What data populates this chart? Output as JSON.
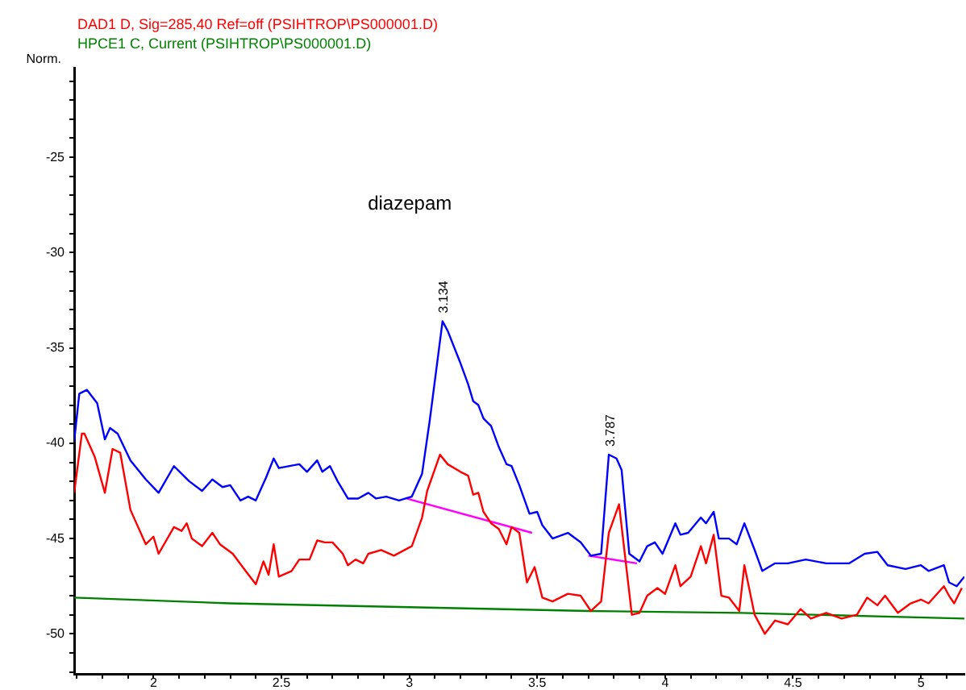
{
  "chart_data": {
    "type": "line",
    "ylabel": "Norm.",
    "annotations": [
      "diazepam",
      {
        "text": "3.134",
        "x": 3.134,
        "y": -33.6
      },
      {
        "text": "3.787",
        "x": 3.787,
        "y": -40.6
      }
    ],
    "xlim": [
      1.69,
      5.17
    ],
    "ylim": [
      -52.1,
      -20.3
    ],
    "xticks": [
      {
        "value": 1.7,
        "label": null
      },
      {
        "value": 1.8,
        "label": null
      },
      {
        "value": 1.9,
        "label": null
      },
      2,
      {
        "value": 2.1,
        "label": null
      },
      {
        "value": 2.2,
        "label": null
      },
      {
        "value": 2.3,
        "label": null
      },
      {
        "value": 2.4,
        "label": null
      },
      2.5,
      {
        "value": 2.6,
        "label": null
      },
      {
        "value": 2.7,
        "label": null
      },
      {
        "value": 2.8,
        "label": null
      },
      {
        "value": 2.9,
        "label": null
      },
      3,
      {
        "value": 3.1,
        "label": null
      },
      {
        "value": 3.2,
        "label": null
      },
      {
        "value": 3.3,
        "label": null
      },
      {
        "value": 3.4,
        "label": null
      },
      3.5,
      {
        "value": 3.6,
        "label": null
      },
      {
        "value": 3.7,
        "label": null
      },
      {
        "value": 3.8,
        "label": null
      },
      {
        "value": 3.9,
        "label": null
      },
      4,
      {
        "value": 4.1,
        "label": null
      },
      {
        "value": 4.2,
        "label": null
      },
      {
        "value": 4.3,
        "label": null
      },
      {
        "value": 4.4,
        "label": null
      },
      4.5,
      {
        "value": 4.6,
        "label": null
      },
      {
        "value": 4.7,
        "label": null
      },
      {
        "value": 4.8,
        "label": null
      },
      {
        "value": 4.9,
        "label": null
      },
      5,
      {
        "value": 5.1,
        "label": null
      }
    ],
    "yticks": [
      {
        "value": -52,
        "label": null
      },
      {
        "value": -51,
        "label": null
      },
      -50,
      {
        "value": -49,
        "label": null
      },
      {
        "value": -48,
        "label": null
      },
      {
        "value": -47,
        "label": null
      },
      {
        "value": -46,
        "label": null
      },
      -45,
      {
        "value": -44,
        "label": null
      },
      {
        "value": -43,
        "label": null
      },
      {
        "value": -42,
        "label": null
      },
      {
        "value": -41,
        "label": null
      },
      -40,
      {
        "value": -39,
        "label": null
      },
      {
        "value": -38,
        "label": null
      },
      {
        "value": -37,
        "label": null
      },
      {
        "value": -36,
        "label": null
      },
      -35,
      {
        "value": -34,
        "label": null
      },
      {
        "value": -33,
        "label": null
      },
      {
        "value": -32,
        "label": null
      },
      {
        "value": -31,
        "label": null
      },
      -30,
      {
        "value": -29,
        "label": null
      },
      {
        "value": -28,
        "label": null
      },
      {
        "value": -27,
        "label": null
      },
      {
        "value": -26,
        "label": null
      },
      -25,
      {
        "value": -24,
        "label": null
      },
      {
        "value": -23,
        "label": null
      },
      {
        "value": -22,
        "label": null
      },
      {
        "value": -21,
        "label": null
      }
    ],
    "grid": false,
    "marker": "none",
    "line_style": "solid",
    "series": [
      {
        "color": "#0000ff",
        "x": [
          1.69,
          1.71,
          1.74,
          1.78,
          1.81,
          1.83,
          1.86,
          1.91,
          1.97,
          2.02,
          2.08,
          2.14,
          2.19,
          2.23,
          2.27,
          2.3,
          2.34,
          2.37,
          2.4,
          2.44,
          2.47,
          2.49,
          2.57,
          2.6,
          2.64,
          2.66,
          2.69,
          2.72,
          2.76,
          2.8,
          2.84,
          2.87,
          2.91,
          2.96,
          3.01,
          3.05,
          3.08,
          3.13,
          3.15,
          3.2,
          3.23,
          3.25,
          3.27,
          3.29,
          3.32,
          3.35,
          3.38,
          3.4,
          3.43,
          3.47,
          3.5,
          3.52,
          3.56,
          3.62,
          3.67,
          3.71,
          3.75,
          3.78,
          3.81,
          3.83,
          3.86,
          3.9,
          3.93,
          3.96,
          3.99,
          4.04,
          4.06,
          4.09,
          4.14,
          4.16,
          4.19,
          4.21,
          4.25,
          4.28,
          4.31,
          4.35,
          4.38,
          4.43,
          4.48,
          4.55,
          4.63,
          4.72,
          4.78,
          4.83,
          4.87,
          4.94,
          5.0,
          5.03,
          5.09,
          5.11,
          5.14,
          5.17
        ],
        "values": [
          -39.9,
          -37.4,
          -37.2,
          -37.9,
          -39.8,
          -39.2,
          -39.5,
          -40.9,
          -41.9,
          -42.6,
          -41.2,
          -42.0,
          -42.5,
          -41.9,
          -42.3,
          -42.2,
          -43.0,
          -42.8,
          -43.0,
          -41.8,
          -40.8,
          -41.3,
          -41.1,
          -41.5,
          -40.9,
          -41.5,
          -41.2,
          -42.0,
          -42.9,
          -42.9,
          -42.6,
          -42.9,
          -42.8,
          -43.0,
          -42.8,
          -41.6,
          -38.8,
          -33.6,
          -34.1,
          -35.8,
          -36.9,
          -37.8,
          -38.0,
          -38.7,
          -39.1,
          -40.2,
          -41.1,
          -41.2,
          -42.2,
          -43.7,
          -43.6,
          -44.3,
          -45.0,
          -44.7,
          -45.2,
          -45.9,
          -45.8,
          -40.6,
          -40.8,
          -41.4,
          -45.8,
          -46.2,
          -45.4,
          -45.2,
          -45.8,
          -44.2,
          -44.8,
          -44.7,
          -43.9,
          -44.2,
          -43.6,
          -45.0,
          -45.0,
          -45.3,
          -44.2,
          -45.6,
          -46.7,
          -46.3,
          -46.3,
          -46.1,
          -46.3,
          -46.3,
          -45.8,
          -45.7,
          -46.4,
          -46.6,
          -46.4,
          -46.7,
          -46.4,
          -47.3,
          -47.5,
          -47.0
        ]
      },
      {
        "name": "DAD1 D, Sig=285,40 Ref=off (PSIHTROP\\PS000001.D)",
        "color": "#ff0000",
        "x": [
          1.69,
          1.72,
          1.73,
          1.77,
          1.81,
          1.84,
          1.87,
          1.91,
          1.97,
          2.0,
          2.02,
          2.08,
          2.11,
          2.13,
          2.15,
          2.19,
          2.23,
          2.26,
          2.31,
          2.36,
          2.4,
          2.43,
          2.45,
          2.47,
          2.49,
          2.54,
          2.57,
          2.61,
          2.64,
          2.67,
          2.7,
          2.74,
          2.76,
          2.79,
          2.82,
          2.84,
          2.89,
          2.94,
          3.01,
          3.05,
          3.07,
          3.12,
          3.15,
          3.2,
          3.23,
          3.25,
          3.27,
          3.29,
          3.32,
          3.35,
          3.38,
          3.4,
          3.43,
          3.46,
          3.49,
          3.52,
          3.56,
          3.62,
          3.67,
          3.71,
          3.75,
          3.78,
          3.82,
          3.87,
          3.9,
          3.93,
          3.97,
          4.0,
          4.04,
          4.06,
          4.1,
          4.14,
          4.16,
          4.19,
          4.22,
          4.25,
          4.29,
          4.31,
          4.35,
          4.39,
          4.43,
          4.48,
          4.53,
          4.57,
          4.63,
          4.69,
          4.75,
          4.79,
          4.83,
          4.86,
          4.91,
          4.96,
          5.0,
          5.03,
          5.09,
          5.11,
          5.13,
          5.16
        ],
        "values": [
          -42.6,
          -39.5,
          -39.5,
          -40.7,
          -42.6,
          -40.3,
          -40.5,
          -43.5,
          -45.3,
          -44.9,
          -45.8,
          -44.4,
          -44.6,
          -44.2,
          -45.0,
          -45.4,
          -44.7,
          -45.3,
          -45.8,
          -46.7,
          -47.4,
          -46.2,
          -46.9,
          -45.3,
          -47.0,
          -46.7,
          -46.1,
          -46.1,
          -45.1,
          -45.2,
          -45.2,
          -45.8,
          -46.4,
          -46.1,
          -46.3,
          -45.8,
          -45.6,
          -45.9,
          -45.4,
          -43.9,
          -42.5,
          -40.6,
          -41.1,
          -41.5,
          -41.7,
          -42.7,
          -42.6,
          -43.6,
          -44.2,
          -44.5,
          -45.3,
          -44.4,
          -44.7,
          -47.3,
          -46.5,
          -48.1,
          -48.3,
          -47.9,
          -48.0,
          -48.8,
          -48.3,
          -44.7,
          -43.2,
          -49.0,
          -48.9,
          -48.0,
          -47.6,
          -47.9,
          -46.4,
          -47.5,
          -47.0,
          -45.4,
          -46.3,
          -44.8,
          -48.0,
          -48.1,
          -48.8,
          -46.4,
          -49.0,
          -50.0,
          -49.3,
          -49.5,
          -48.7,
          -49.2,
          -48.9,
          -49.2,
          -49.0,
          -48.1,
          -48.5,
          -48.0,
          -48.9,
          -48.4,
          -48.2,
          -48.4,
          -47.5,
          -48.0,
          -48.4,
          -47.6
        ]
      },
      {
        "name": "HPCE1 C, Current (PSIHTROP\\PS000001.D)",
        "color": "#008000",
        "x": [
          1.69,
          2.3,
          3.0,
          3.7,
          4.3,
          5.17
        ],
        "values": [
          -48.1,
          -48.4,
          -48.6,
          -48.8,
          -48.9,
          -49.2
        ]
      },
      {
        "color": "#ff00ff",
        "x": [
          2.99,
          3.48
        ],
        "values": [
          -42.9,
          -44.7
        ]
      },
      {
        "color": "#ff00ff",
        "x": [
          3.7,
          3.89
        ],
        "values": [
          -45.9,
          -46.3
        ]
      }
    ]
  }
}
